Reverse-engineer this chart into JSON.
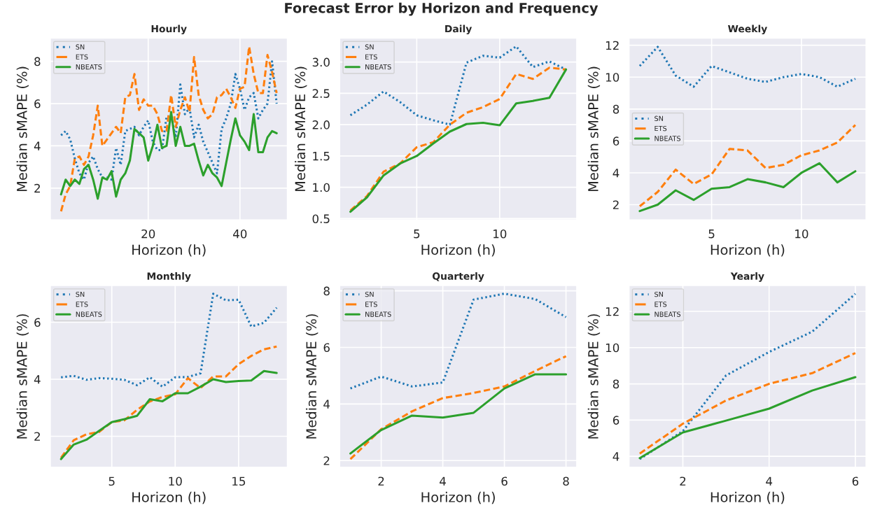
{
  "chart_data": [
    {
      "type": "line",
      "title": "Hourly",
      "xlabel": "Horizon (h)",
      "ylabel": "Median sMAPE (%)",
      "annotations": [
        "Forecast Error by Horizon and Frequency"
      ],
      "grid": true,
      "legend": "top left",
      "x": [
        1,
        2,
        3,
        4,
        5,
        6,
        7,
        8,
        9,
        10,
        11,
        12,
        13,
        14,
        15,
        16,
        17,
        18,
        19,
        20,
        21,
        22,
        23,
        24,
        25,
        26,
        27,
        28,
        29,
        30,
        31,
        32,
        33,
        34,
        35,
        36,
        37,
        38,
        39,
        40,
        41,
        42,
        43,
        44,
        45,
        46,
        47,
        48
      ],
      "xlim": [
        -1.35,
        50.35
      ],
      "xticks": [
        20,
        40
      ],
      "ylim": [
        0.49,
        9.1
      ],
      "yticks": [
        2,
        4,
        6,
        8
      ],
      "series": [
        {
          "name": "SN",
          "color": "#1f77b4",
          "line_style": "dotted",
          "values": [
            4.5,
            4.7,
            4.3,
            3.4,
            2.7,
            2.4,
            3.2,
            3.5,
            2.9,
            2.5,
            2.5,
            2.4,
            3.9,
            3.1,
            4.7,
            4.8,
            4.9,
            4.5,
            4.9,
            5.2,
            4.2,
            3.8,
            3.8,
            5.4,
            5.4,
            4.4,
            6.9,
            5.5,
            5.8,
            4.4,
            5.0,
            4.2,
            3.7,
            3.2,
            2.7,
            4.8,
            5.3,
            6.0,
            7.4,
            6.7,
            5.7,
            6.3,
            6.5,
            5.3,
            5.7,
            6.0,
            8.0,
            6.0
          ]
        },
        {
          "name": "ETS",
          "color": "#ff7f0e",
          "line_style": "dashed",
          "values": [
            0.9,
            1.7,
            2.1,
            3.4,
            3.5,
            3.1,
            3.5,
            4.5,
            5.9,
            4.0,
            4.3,
            4.6,
            4.9,
            4.6,
            6.3,
            6.4,
            7.4,
            5.7,
            6.2,
            5.9,
            5.9,
            5.5,
            4.7,
            4.7,
            6.4,
            4.9,
            5.7,
            6.3,
            5.6,
            8.2,
            6.4,
            5.7,
            5.3,
            5.5,
            6.3,
            6.4,
            6.7,
            6.3,
            5.8,
            6.7,
            6.8,
            8.7,
            7.4,
            6.5,
            6.5,
            8.3,
            7.5,
            6.5
          ]
        },
        {
          "name": "NBEATS",
          "color": "#2ca02c",
          "line_style": "solid",
          "values": [
            1.7,
            2.4,
            2.1,
            2.4,
            2.2,
            2.9,
            3.1,
            2.4,
            1.5,
            2.5,
            2.4,
            2.8,
            1.6,
            2.4,
            2.7,
            3.3,
            4.8,
            4.6,
            4.4,
            3.3,
            4.0,
            5.0,
            3.9,
            4.0,
            5.6,
            4.0,
            4.9,
            4.0,
            4.0,
            4.1,
            3.3,
            2.6,
            3.1,
            2.7,
            2.5,
            2.1,
            3.2,
            4.3,
            5.3,
            4.5,
            4.2,
            3.8,
            5.5,
            3.7,
            3.7,
            4.4,
            4.7,
            4.6
          ]
        }
      ]
    },
    {
      "type": "line",
      "title": "Daily",
      "xlabel": "Horizon (h)",
      "ylabel": "Median sMAPE (%)",
      "grid": true,
      "legend": "top left",
      "x": [
        1,
        2,
        3,
        4,
        5,
        6,
        7,
        8,
        9,
        10,
        11,
        12,
        13,
        14
      ],
      "xlim": [
        0.35,
        14.65
      ],
      "xticks": [
        5,
        10
      ],
      "ylim": [
        0.478,
        3.382
      ],
      "yticks": [
        {
          "value": 0.5,
          "label": "0.5"
        },
        {
          "value": 1.0,
          "label": "1.0"
        },
        {
          "value": 1.5,
          "label": "1.5"
        },
        {
          "value": 2.0,
          "label": "2.0"
        },
        {
          "value": 2.5,
          "label": "2.5"
        },
        {
          "value": 3.0,
          "label": "3.0"
        }
      ],
      "series": [
        {
          "name": "SN",
          "color": "#1f77b4",
          "line_style": "dotted",
          "values": [
            2.15,
            2.32,
            2.53,
            2.36,
            2.15,
            2.07,
            2.0,
            2.99,
            3.1,
            3.07,
            3.25,
            2.92,
            3.01,
            2.88
          ]
        },
        {
          "name": "ETS",
          "color": "#ff7f0e",
          "line_style": "dashed",
          "values": [
            0.63,
            0.86,
            1.25,
            1.38,
            1.64,
            1.72,
            2.0,
            2.19,
            2.28,
            2.41,
            2.81,
            2.73,
            2.91,
            2.88
          ]
        },
        {
          "name": "NBEATS",
          "color": "#2ca02c",
          "line_style": "solid",
          "values": [
            0.61,
            0.84,
            1.19,
            1.38,
            1.5,
            1.7,
            1.89,
            2.01,
            2.03,
            1.99,
            2.34,
            2.38,
            2.43,
            2.88
          ]
        }
      ]
    },
    {
      "type": "line",
      "title": "Weekly",
      "xlabel": "Horizon (h)",
      "ylabel": "Median sMAPE (%)",
      "grid": true,
      "legend": "left",
      "x": [
        1,
        2,
        3,
        4,
        5,
        6,
        7,
        8,
        9,
        10,
        11,
        12,
        13
      ],
      "xlim": [
        0.4,
        13.6
      ],
      "xticks": [
        5,
        10
      ],
      "ylim": [
        1.04,
        12.45
      ],
      "yticks": [
        2,
        4,
        6,
        8,
        10,
        12
      ],
      "series": [
        {
          "name": "SN",
          "color": "#1f77b4",
          "line_style": "dotted",
          "values": [
            10.7,
            11.9,
            10.1,
            9.4,
            10.7,
            10.3,
            9.9,
            9.7,
            10.0,
            10.2,
            10.0,
            9.4,
            9.9
          ]
        },
        {
          "name": "ETS",
          "color": "#ff7f0e",
          "line_style": "dashed",
          "values": [
            1.9,
            2.8,
            4.2,
            3.3,
            3.9,
            5.5,
            5.4,
            4.3,
            4.5,
            5.1,
            5.4,
            5.9,
            7.0
          ]
        },
        {
          "name": "NBEATS",
          "color": "#2ca02c",
          "line_style": "solid",
          "values": [
            1.6,
            2.0,
            2.9,
            2.3,
            3.0,
            3.1,
            3.6,
            3.4,
            3.1,
            4.0,
            4.6,
            3.4,
            4.1
          ]
        }
      ]
    },
    {
      "type": "line",
      "title": "Monthly",
      "xlabel": "Horizon (h)",
      "ylabel": "Median sMAPE (%)",
      "grid": true,
      "legend": "top left",
      "x": [
        1,
        2,
        3,
        4,
        5,
        6,
        7,
        8,
        9,
        10,
        11,
        12,
        13,
        14,
        15,
        16,
        17,
        18
      ],
      "xlim": [
        0.15,
        18.85
      ],
      "xticks": [
        5,
        10,
        15
      ],
      "ylim": [
        0.91,
        7.29
      ],
      "yticks": [
        2,
        4,
        6
      ],
      "series": [
        {
          "name": "SN",
          "color": "#1f77b4",
          "line_style": "dotted",
          "values": [
            4.07,
            4.12,
            3.98,
            4.04,
            4.02,
            3.98,
            3.79,
            4.07,
            3.74,
            4.07,
            4.08,
            4.21,
            7.0,
            6.77,
            6.79,
            5.85,
            5.98,
            6.51
          ]
        },
        {
          "name": "ETS",
          "color": "#ff7f0e",
          "line_style": "dashed",
          "values": [
            1.25,
            1.86,
            2.07,
            2.15,
            2.5,
            2.56,
            2.93,
            3.22,
            3.38,
            3.47,
            4.04,
            3.69,
            4.1,
            4.1,
            4.53,
            4.82,
            5.05,
            5.15
          ]
        },
        {
          "name": "NBEATS",
          "color": "#2ca02c",
          "line_style": "solid",
          "values": [
            1.2,
            1.71,
            1.88,
            2.19,
            2.5,
            2.6,
            2.72,
            3.3,
            3.23,
            3.51,
            3.51,
            3.74,
            4.0,
            3.9,
            3.94,
            3.96,
            4.29,
            4.22
          ]
        }
      ]
    },
    {
      "type": "line",
      "title": "Quarterly",
      "xlabel": "Horizon (h)",
      "ylabel": "Median sMAPE (%)",
      "grid": true,
      "legend": "top left",
      "x": [
        1,
        2,
        3,
        4,
        5,
        6,
        7,
        8
      ],
      "xlim": [
        0.65,
        8.35
      ],
      "xticks": [
        2,
        4,
        6,
        8
      ],
      "ylim": [
        1.76,
        8.19
      ],
      "yticks": [
        2,
        4,
        6,
        8
      ],
      "series": [
        {
          "name": "SN",
          "color": "#1f77b4",
          "line_style": "dotted",
          "values": [
            4.55,
            4.97,
            4.62,
            4.76,
            7.69,
            7.9,
            7.71,
            7.07
          ]
        },
        {
          "name": "ETS",
          "color": "#ff7f0e",
          "line_style": "dashed",
          "values": [
            2.05,
            3.11,
            3.74,
            4.21,
            4.39,
            4.62,
            5.17,
            5.69
          ]
        },
        {
          "name": "NBEATS",
          "color": "#2ca02c",
          "line_style": "solid",
          "values": [
            2.25,
            3.08,
            3.59,
            3.52,
            3.69,
            4.55,
            5.05,
            5.05
          ]
        }
      ]
    },
    {
      "type": "line",
      "title": "Yearly",
      "xlabel": "Horizon (h)",
      "ylabel": "Median sMAPE (%)",
      "grid": true,
      "legend": "top left",
      "x": [
        1,
        2,
        3,
        4,
        5,
        6
      ],
      "xlim": [
        0.75,
        6.25
      ],
      "xticks": [
        2,
        4,
        6
      ],
      "ylim": [
        3.39,
        13.43
      ],
      "yticks": [
        4,
        6,
        8,
        10,
        12
      ],
      "series": [
        {
          "name": "SN",
          "color": "#1f77b4",
          "line_style": "dotted",
          "values": [
            3.85,
            5.39,
            8.46,
            9.76,
            10.88,
            12.97
          ]
        },
        {
          "name": "ETS",
          "color": "#ff7f0e",
          "line_style": "dashed",
          "values": [
            4.15,
            5.8,
            7.08,
            8.0,
            8.59,
            9.7
          ]
        },
        {
          "name": "NBEATS",
          "color": "#2ca02c",
          "line_style": "solid",
          "values": [
            3.9,
            5.32,
            5.97,
            6.63,
            7.63,
            8.37
          ]
        }
      ]
    }
  ]
}
